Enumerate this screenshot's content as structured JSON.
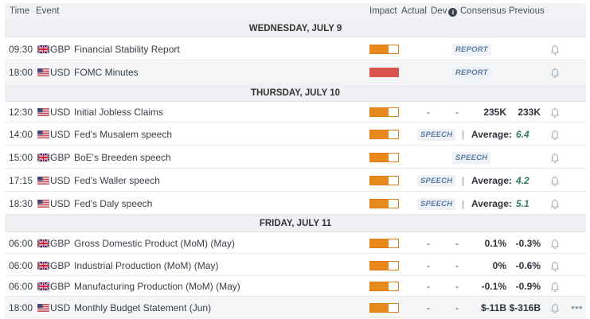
{
  "header": {
    "time": "Time",
    "event": "Event",
    "impact": "Impact",
    "actual": "Actual",
    "dev": "Dev",
    "consensus": "Consensus",
    "previous": "Previous"
  },
  "days": [
    {
      "label": "WEDNESDAY, JULY 9",
      "events": [
        {
          "time": "09:30",
          "flag": "gb-flag",
          "currency": "GBP",
          "name": "Financial Stability Report",
          "impact": "medium",
          "impact_level": 0.66,
          "pill": "REPORT"
        },
        {
          "time": "18:00",
          "flag": "us-flag",
          "currency": "USD",
          "name": "FOMC Minutes",
          "impact": "high",
          "impact_level": 1.0,
          "pill": "REPORT"
        }
      ]
    },
    {
      "label": "THURSDAY, JULY 10",
      "events": [
        {
          "time": "12:30",
          "flag": "us-flag",
          "currency": "USD",
          "name": "Initial Jobless Claims",
          "impact": "medium",
          "impact_level": 0.66,
          "actual": "-",
          "dev": "-",
          "consensus": "235K",
          "previous": "233K"
        },
        {
          "time": "14:00",
          "flag": "us-flag",
          "currency": "USD",
          "name": "Fed's Musalem speech",
          "impact": "medium",
          "impact_level": 0.66,
          "pill": "SPEECH",
          "avg_label": "Average:",
          "avg_value": "6.4"
        },
        {
          "time": "15:00",
          "flag": "gb-flag",
          "currency": "GBP",
          "name": "BoE's Breeden speech",
          "impact": "medium",
          "impact_level": 0.66,
          "pill": "SPEECH"
        },
        {
          "time": "17:15",
          "flag": "us-flag",
          "currency": "USD",
          "name": "Fed's Waller speech",
          "impact": "medium",
          "impact_level": 0.66,
          "pill": "SPEECH",
          "avg_label": "Average:",
          "avg_value": "4.2"
        },
        {
          "time": "18:30",
          "flag": "us-flag",
          "currency": "USD",
          "name": "Fed's Daly speech",
          "impact": "medium",
          "impact_level": 0.66,
          "pill": "SPEECH",
          "avg_label": "Average:",
          "avg_value": "5.1"
        }
      ]
    },
    {
      "label": "FRIDAY, JULY 11",
      "events": [
        {
          "time": "06:00",
          "flag": "gb-flag",
          "currency": "GBP",
          "name": "Gross Domestic Product (MoM) (May)",
          "impact": "medium",
          "impact_level": 0.66,
          "actual": "-",
          "dev": "-",
          "consensus": "0.1%",
          "previous": "-0.3%"
        },
        {
          "time": "06:00",
          "flag": "gb-flag",
          "currency": "GBP",
          "name": "Industrial Production (MoM) (May)",
          "impact": "medium",
          "impact_level": 0.66,
          "actual": "-",
          "dev": "-",
          "consensus": "0%",
          "previous": "-0.6%"
        },
        {
          "time": "06:00",
          "flag": "gb-flag",
          "currency": "GBP",
          "name": "Manufacturing Production (MoM) (May)",
          "impact": "medium",
          "impact_level": 0.66,
          "actual": "-",
          "dev": "-",
          "consensus": "-0.1%",
          "previous": "-0.9%"
        },
        {
          "time": "18:00",
          "flag": "us-flag",
          "currency": "USD",
          "name": "Monthly Budget Statement (Jun)",
          "impact": "medium",
          "impact_level": 0.66,
          "actual": "-",
          "dev": "-",
          "consensus": "$-11B",
          "previous": "$-316B"
        }
      ]
    }
  ],
  "colors": {
    "impact_medium": "#e8891d",
    "impact_high": "#d9534f",
    "speech_average": "#2e7d5b",
    "header_bg": "#f1f3f6"
  },
  "icons": {
    "info": "info-icon",
    "bell": "bell-icon",
    "more": "more-options-icon"
  }
}
